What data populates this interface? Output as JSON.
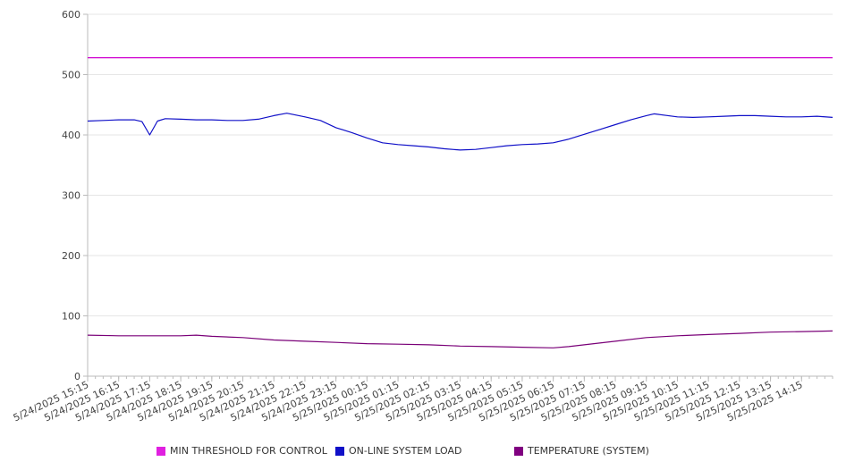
{
  "colors": {
    "threshold": "#d000d0",
    "load": "#1010c8",
    "temperature": "#7a0078",
    "grid": "#e6e6e6",
    "axis": "#bbbbbb"
  },
  "legend": [
    {
      "label": "MIN THRESHOLD FOR CONTROL",
      "color": "#e020e0"
    },
    {
      "label": "ON-LINE SYSTEM LOAD",
      "color": "#1010c8"
    },
    {
      "label": "TEMPERATURE (SYSTEM)",
      "color": "#800080"
    }
  ],
  "chart_data": {
    "type": "line",
    "title": "",
    "xlabel": "",
    "ylabel": "",
    "ylim": [
      0,
      600
    ],
    "yticks": [
      "0",
      "100",
      "200",
      "300",
      "400",
      "500",
      "600"
    ],
    "x_tick_labels": [
      "5/24/2025 15:15",
      "5/24/2025 16:15",
      "5/24/2025 17:15",
      "5/24/2025 18:15",
      "5/24/2025 19:15",
      "5/24/2025 20:15",
      "5/24/2025 21:15",
      "5/24/2025 22:15",
      "5/24/2025 23:15",
      "5/25/2025 00:15",
      "5/25/2025 01:15",
      "5/25/2025 02:15",
      "5/25/2025 03:15",
      "5/25/2025 04:15",
      "5/25/2025 05:15",
      "5/25/2025 06:15",
      "5/25/2025 07:15",
      "5/25/2025 08:15",
      "5/25/2025 09:15",
      "5/25/2025 10:15",
      "5/25/2025 11:15",
      "5/25/2025 12:15",
      "5/25/2025 13:15",
      "5/25/2025 14:15"
    ],
    "x_range": [
      "5/24/2025 15:15",
      "5/25/2025 15:15"
    ],
    "grid": true,
    "legend_position": "bottom",
    "series": [
      {
        "name": "MIN THRESHOLD FOR CONTROL",
        "points": [
          [
            "5/24/2025 15:15",
            528
          ],
          [
            "5/25/2025 15:15",
            528
          ]
        ]
      },
      {
        "name": "ON-LINE SYSTEM LOAD",
        "points": [
          [
            "5/24/2025 15:15",
            423
          ],
          [
            "5/24/2025 15:45",
            424
          ],
          [
            "5/24/2025 16:15",
            425
          ],
          [
            "5/24/2025 16:45",
            425
          ],
          [
            "5/24/2025 17:00",
            422
          ],
          [
            "5/24/2025 17:15",
            400
          ],
          [
            "5/24/2025 17:30",
            423
          ],
          [
            "5/24/2025 17:45",
            427
          ],
          [
            "5/24/2025 18:15",
            426
          ],
          [
            "5/24/2025 18:45",
            425
          ],
          [
            "5/24/2025 19:15",
            425
          ],
          [
            "5/24/2025 19:45",
            424
          ],
          [
            "5/24/2025 20:15",
            424
          ],
          [
            "5/24/2025 20:45",
            426
          ],
          [
            "5/24/2025 21:15",
            432
          ],
          [
            "5/24/2025 21:40",
            436
          ],
          [
            "5/24/2025 22:15",
            430
          ],
          [
            "5/24/2025 22:45",
            424
          ],
          [
            "5/24/2025 23:15",
            412
          ],
          [
            "5/24/2025 23:45",
            404
          ],
          [
            "5/25/2025 00:15",
            395
          ],
          [
            "5/25/2025 00:45",
            387
          ],
          [
            "5/25/2025 01:15",
            384
          ],
          [
            "5/25/2025 01:45",
            382
          ],
          [
            "5/25/2025 02:15",
            380
          ],
          [
            "5/25/2025 02:45",
            377
          ],
          [
            "5/25/2025 03:15",
            375
          ],
          [
            "5/25/2025 03:45",
            376
          ],
          [
            "5/25/2025 04:15",
            379
          ],
          [
            "5/25/2025 04:45",
            382
          ],
          [
            "5/25/2025 05:15",
            384
          ],
          [
            "5/25/2025 05:45",
            385
          ],
          [
            "5/25/2025 06:15",
            387
          ],
          [
            "5/25/2025 06:45",
            393
          ],
          [
            "5/25/2025 07:15",
            401
          ],
          [
            "5/25/2025 07:45",
            409
          ],
          [
            "5/25/2025 08:15",
            417
          ],
          [
            "5/25/2025 08:45",
            425
          ],
          [
            "5/25/2025 09:15",
            432
          ],
          [
            "5/25/2025 09:30",
            435
          ],
          [
            "5/25/2025 10:15",
            430
          ],
          [
            "5/25/2025 10:45",
            429
          ],
          [
            "5/25/2025 11:15",
            430
          ],
          [
            "5/25/2025 11:45",
            431
          ],
          [
            "5/25/2025 12:15",
            432
          ],
          [
            "5/25/2025 12:45",
            432
          ],
          [
            "5/25/2025 13:15",
            431
          ],
          [
            "5/25/2025 13:45",
            430
          ],
          [
            "5/25/2025 14:15",
            430
          ],
          [
            "5/25/2025 14:45",
            431
          ],
          [
            "5/25/2025 15:15",
            429
          ]
        ]
      },
      {
        "name": "TEMPERATURE (SYSTEM)",
        "points": [
          [
            "5/24/2025 15:15",
            68
          ],
          [
            "5/24/2025 16:15",
            67
          ],
          [
            "5/24/2025 17:15",
            67
          ],
          [
            "5/24/2025 18:15",
            67
          ],
          [
            "5/24/2025 18:45",
            68
          ],
          [
            "5/24/2025 19:15",
            66
          ],
          [
            "5/24/2025 20:15",
            64
          ],
          [
            "5/24/2025 21:15",
            60
          ],
          [
            "5/24/2025 22:15",
            58
          ],
          [
            "5/24/2025 23:15",
            56
          ],
          [
            "5/25/2025 00:15",
            54
          ],
          [
            "5/25/2025 01:15",
            53
          ],
          [
            "5/25/2025 02:15",
            52
          ],
          [
            "5/25/2025 03:15",
            50
          ],
          [
            "5/25/2025 04:15",
            49
          ],
          [
            "5/25/2025 05:15",
            48
          ],
          [
            "5/25/2025 06:15",
            47
          ],
          [
            "5/25/2025 06:45",
            49
          ],
          [
            "5/25/2025 07:15",
            52
          ],
          [
            "5/25/2025 08:15",
            58
          ],
          [
            "5/25/2025 09:15",
            64
          ],
          [
            "5/25/2025 10:15",
            67
          ],
          [
            "5/25/2025 11:15",
            69
          ],
          [
            "5/25/2025 12:15",
            71
          ],
          [
            "5/25/2025 13:15",
            73
          ],
          [
            "5/25/2025 14:15",
            74
          ],
          [
            "5/25/2025 15:15",
            75
          ]
        ]
      }
    ]
  }
}
